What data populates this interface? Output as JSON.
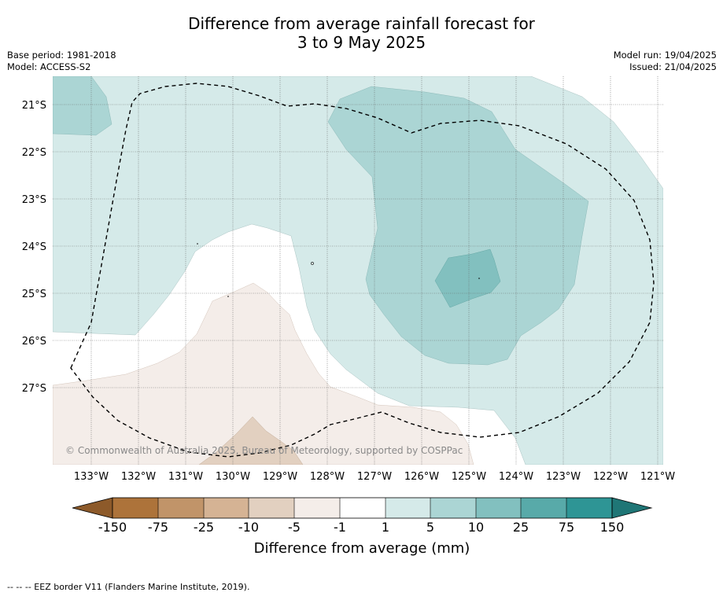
{
  "title": {
    "line1": "Difference from average rainfall forecast for",
    "line2": "3 to 9 May 2025"
  },
  "meta_left": {
    "base_period": "Base period: 1981-2018",
    "model": "Model: ACCESS-S2"
  },
  "meta_right": {
    "model_run": "Model run: 19/04/2025",
    "issued": "Issued: 21/04/2025"
  },
  "map": {
    "lat_labels": [
      "21°S",
      "22°S",
      "23°S",
      "24°S",
      "25°S",
      "26°S",
      "27°S"
    ],
    "lon_labels": [
      "133°W",
      "132°W",
      "131°W",
      "130°W",
      "129°W",
      "128°W",
      "127°W",
      "126°W",
      "125°W",
      "124°W",
      "123°W",
      "122°W",
      "121°W"
    ],
    "credit": "© Commonwealth of Australia 2025, Bureau of Meteorology, supported by COSPPac",
    "colors": {
      "wet_1_5": "#d5eae9",
      "wet_5_10": "#abd5d4",
      "wet_10_25": "#82c0bf",
      "dry_1_5": "#f4ede9",
      "dry_5_10": "#e2d0c0"
    }
  },
  "colorbar": {
    "tick_labels": [
      "-150",
      "-75",
      "-25",
      "-10",
      "-5",
      "-1",
      "1",
      "5",
      "10",
      "25",
      "75",
      "150"
    ],
    "bin_colors": [
      "#ad733a",
      "#c19469",
      "#d5b394",
      "#e2d0c0",
      "#f4ede9",
      "#ffffff",
      "#d5eae9",
      "#abd5d4",
      "#82c0bf",
      "#58aaa9",
      "#2e9595"
    ],
    "low_extend_color": "#8d5a2a",
    "high_extend_color": "#1f7676",
    "title": "Difference from average (mm)"
  },
  "footnote": "--  --  -- EEZ border V11 (Flanders Marine Institute, 2019)."
}
